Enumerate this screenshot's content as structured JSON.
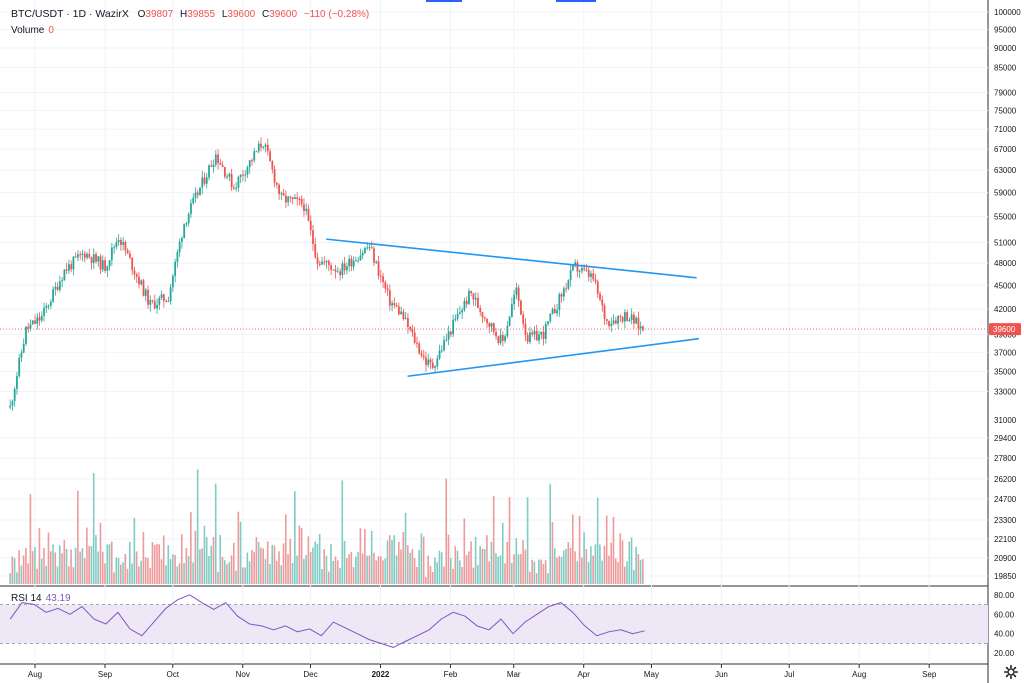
{
  "symbol": "BTC/USDT · 1D · WazirX",
  "ohlc": {
    "o_label": "O",
    "o": "39807",
    "h_label": "H",
    "h": "39855",
    "l_label": "L",
    "l": "39600",
    "c_label": "C",
    "c": "39600",
    "change": "−110 (−0.28%)"
  },
  "volume_label": "Volume",
  "volume_value": "0",
  "rsi_label": "RSI 14",
  "rsi_value": "43.19",
  "last_price_tag": "39600",
  "colors": {
    "up": "#26a69a",
    "down": "#ef5350",
    "trendline": "#2196f3",
    "rsi_line": "#7e57c2",
    "rsi_band": "#ede7f6"
  },
  "icons": [
    "settings-gear-icon"
  ],
  "chart_data": [
    {
      "type": "candlestick",
      "title": "BTC/USDT · 1D · WazirX",
      "x_tick_labels": [
        "Aug",
        "Sep",
        "Oct",
        "Nov",
        "Dec",
        "2022",
        "Feb",
        "Mar",
        "Apr",
        "May",
        "Jun",
        "Jul",
        "Aug",
        "Sep"
      ],
      "y_tick_labels": [
        "100000",
        "95000",
        "90000",
        "85000",
        "79000",
        "75000",
        "71000",
        "67000",
        "63000",
        "59000",
        "55000",
        "51000",
        "48000",
        "45000",
        "42000",
        "39000",
        "37000",
        "35000",
        "33000",
        "31000",
        "29400",
        "27800",
        "26200",
        "24700",
        "23300",
        "22100",
        "20900",
        "19850"
      ],
      "y_scale": "log",
      "grid": true,
      "last_price": 39600,
      "series": [
        {
          "x": [
            "2021-07-21",
            "2021-07-28",
            "2021-08-04",
            "2021-08-14",
            "2021-08-23",
            "2021-09-01",
            "2021-09-07",
            "2021-09-21",
            "2021-09-29",
            "2021-10-06",
            "2021-10-20",
            "2021-10-28",
            "2021-11-10",
            "2021-11-18",
            "2021-11-28",
            "2021-12-04",
            "2021-12-14",
            "2021-12-27",
            "2022-01-05",
            "2022-01-10",
            "2022-01-21",
            "2022-01-24",
            "2022-02-05",
            "2022-02-10",
            "2022-02-14",
            "2022-02-24",
            "2022-03-02",
            "2022-03-07",
            "2022-03-14",
            "2022-03-28",
            "2022-04-05",
            "2022-04-11",
            "2022-04-20",
            "2022-04-27"
          ],
          "values": [
            31500,
            39500,
            41000,
            47000,
            49500,
            47500,
            52000,
            42500,
            43500,
            54000,
            66000,
            60000,
            68500,
            58000,
            57000,
            48500,
            47000,
            50500,
            43000,
            41500,
            36000,
            35500,
            41600,
            44000,
            42000,
            38000,
            44500,
            38500,
            39000,
            47500,
            46000,
            40500,
            41300,
            39600
          ]
        }
      ],
      "trendlines": [
        {
          "name": "",
          "points": [
            [
              "2021-12-08",
              51500
            ],
            [
              "2022-05-21",
              46000
            ]
          ]
        },
        {
          "name": "",
          "points": [
            [
              "2022-01-13",
              34500
            ],
            [
              "2022-05-22",
              38500
            ]
          ]
        }
      ]
    },
    {
      "type": "bar",
      "title": "Volume",
      "values_relative": [
        0.12,
        0.45,
        0.3,
        0.2,
        0.35,
        0.25,
        0.28,
        0.4,
        0.2,
        0.95,
        0.5,
        0.3,
        0.25,
        0.45,
        0.3,
        0.35,
        0.28,
        0.6,
        0.35,
        0.62,
        0.4,
        0.3,
        0.55,
        0.35,
        0.45,
        0.32,
        0.28,
        0.4,
        0.3,
        0.35,
        0.75,
        0.38,
        0.42,
        0.3,
        0.78,
        0.35,
        0.52,
        0.95,
        0.4,
        0.3,
        0.65,
        0.42,
        0.3,
        0.38,
        0.55,
        0.8
      ],
      "y_tick_labels": [
        "29400",
        "27800",
        "26200",
        "24700",
        "23300",
        "22100",
        "20900",
        "19850"
      ]
    },
    {
      "type": "line",
      "title": "RSI 14",
      "y_tick_labels": [
        "80.00",
        "60.00",
        "40.00",
        "20.00"
      ],
      "band": [
        30,
        70
      ],
      "values": [
        55,
        72,
        70,
        62,
        66,
        60,
        68,
        55,
        50,
        62,
        45,
        38,
        52,
        66,
        75,
        80,
        72,
        65,
        72,
        58,
        50,
        48,
        44,
        48,
        42,
        45,
        38,
        52,
        46,
        40,
        34,
        30,
        26,
        32,
        38,
        44,
        55,
        62,
        58,
        48,
        44,
        55,
        40,
        52,
        60,
        68,
        72,
        62,
        48,
        38,
        42,
        44,
        40,
        43
      ]
    }
  ]
}
